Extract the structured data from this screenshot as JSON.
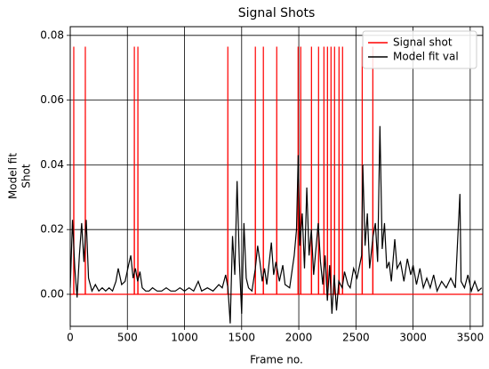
{
  "chart_data": {
    "type": "line",
    "title": "Signal Shots",
    "xlabel": "Frame no.",
    "ylabel": [
      "Model fit",
      "Shot"
    ],
    "xlim": [
      0,
      3610
    ],
    "ylim": [
      -0.0099,
      0.0827
    ],
    "xticks": [
      0,
      500,
      1000,
      1500,
      2000,
      2500,
      3000,
      3500
    ],
    "yticks": [
      {
        "value": 0,
        "label": "0.00"
      },
      {
        "value": 0.02,
        "label": "0.02"
      },
      {
        "value": 0.04,
        "label": "0.04"
      },
      {
        "value": 0.06,
        "label": "0.06"
      },
      {
        "value": 0.08,
        "label": "0.08"
      }
    ],
    "grid": true,
    "legend": "upper right",
    "series": [
      {
        "name": "Signal shot",
        "color": "#ff0000",
        "x": [
          0,
          30,
          31,
          32,
          131,
          132,
          133,
          560,
          561,
          562,
          591,
          592,
          593,
          1378,
          1379,
          1380,
          1619,
          1620,
          1621,
          1689,
          1690,
          1691,
          1806,
          1807,
          1808,
          1993,
          1994,
          1995,
          2016,
          2017,
          2018,
          2110,
          2111,
          2112,
          2172,
          2173,
          2174,
          2219,
          2220,
          2221,
          2250,
          2251,
          2252,
          2281,
          2282,
          2283,
          2312,
          2313,
          2314,
          2351,
          2352,
          2353,
          2382,
          2383,
          2384,
          2554,
          2555,
          2556,
          2647,
          2648,
          2649,
          3610
        ],
        "values": [
          0,
          0,
          0.0765,
          0,
          0,
          0.0765,
          0,
          0,
          0.0765,
          0,
          0,
          0.0765,
          0,
          0,
          0.0765,
          0,
          0,
          0.0765,
          0,
          0,
          0.0765,
          0,
          0,
          0.0765,
          0,
          0,
          0.0765,
          0,
          0,
          0.0765,
          0,
          0,
          0.0765,
          0,
          0,
          0.0765,
          0,
          0,
          0.0765,
          0,
          0,
          0.0765,
          0,
          0,
          0.0765,
          0,
          0,
          0.0765,
          0,
          0,
          0.0765,
          0,
          0,
          0.0765,
          0,
          0,
          0.0765,
          0,
          0,
          0.0765,
          0,
          0
        ]
      },
      {
        "name": "Model fit val",
        "color": "#000000",
        "x": [
          0,
          20,
          40,
          60,
          80,
          100,
          120,
          140,
          160,
          190,
          220,
          250,
          280,
          310,
          340,
          370,
          400,
          420,
          450,
          480,
          510,
          530,
          550,
          570,
          590,
          610,
          630,
          660,
          690,
          720,
          760,
          800,
          840,
          880,
          920,
          960,
          1000,
          1040,
          1080,
          1120,
          1150,
          1200,
          1250,
          1300,
          1330,
          1360,
          1380,
          1400,
          1420,
          1440,
          1460,
          1480,
          1500,
          1520,
          1540,
          1560,
          1590,
          1620,
          1640,
          1660,
          1680,
          1700,
          1720,
          1760,
          1780,
          1800,
          1830,
          1860,
          1880,
          1920,
          1960,
          1980,
          1995,
          2010,
          2030,
          2050,
          2070,
          2090,
          2110,
          2130,
          2150,
          2170,
          2190,
          2210,
          2230,
          2250,
          2270,
          2290,
          2310,
          2330,
          2350,
          2380,
          2400,
          2430,
          2450,
          2480,
          2510,
          2550,
          2560,
          2580,
          2600,
          2620,
          2650,
          2670,
          2690,
          2710,
          2730,
          2750,
          2770,
          2790,
          2810,
          2840,
          2860,
          2890,
          2920,
          2950,
          2980,
          3000,
          3030,
          3060,
          3090,
          3120,
          3150,
          3180,
          3210,
          3250,
          3290,
          3330,
          3370,
          3410,
          3420,
          3450,
          3480,
          3510,
          3540,
          3570,
          3600
        ],
        "values": [
          0.002,
          0.023,
          0.008,
          -0.001,
          0.012,
          0.022,
          0.01,
          0.023,
          0.005,
          0.001,
          0.003,
          0.001,
          0.002,
          0.001,
          0.002,
          0.001,
          0.004,
          0.008,
          0.003,
          0.004,
          0.009,
          0.012,
          0.005,
          0.008,
          0.004,
          0.007,
          0.002,
          0.001,
          0.001,
          0.002,
          0.001,
          0.001,
          0.002,
          0.001,
          0.001,
          0.002,
          0.001,
          0.002,
          0.001,
          0.004,
          0.001,
          0.002,
          0.001,
          0.003,
          0.002,
          0.006,
          0.002,
          -0.009,
          0.018,
          0.006,
          0.035,
          0.01,
          -0.006,
          0.022,
          0.005,
          0.002,
          0.001,
          0.008,
          0.015,
          0.01,
          0.004,
          0.008,
          0.003,
          0.016,
          0.006,
          0.01,
          0.004,
          0.009,
          0.003,
          0.002,
          0.012,
          0.02,
          0.043,
          0.015,
          0.025,
          0.008,
          0.033,
          0.012,
          0.02,
          0.006,
          0.014,
          0.022,
          0.01,
          0.003,
          0.012,
          -0.002,
          0.009,
          -0.006,
          0.006,
          -0.005,
          0.004,
          0.002,
          0.007,
          0.003,
          0.002,
          0.008,
          0.005,
          0.012,
          0.04,
          0.015,
          0.025,
          0.008,
          0.018,
          0.022,
          0.01,
          0.052,
          0.014,
          0.022,
          0.008,
          0.01,
          0.004,
          0.017,
          0.008,
          0.01,
          0.004,
          0.011,
          0.006,
          0.009,
          0.003,
          0.008,
          0.002,
          0.005,
          0.002,
          0.006,
          0.001,
          0.004,
          0.002,
          0.005,
          0.002,
          0.031,
          0.004,
          0.002,
          0.006,
          0.001,
          0.004,
          0.001,
          0.002
        ]
      }
    ]
  }
}
